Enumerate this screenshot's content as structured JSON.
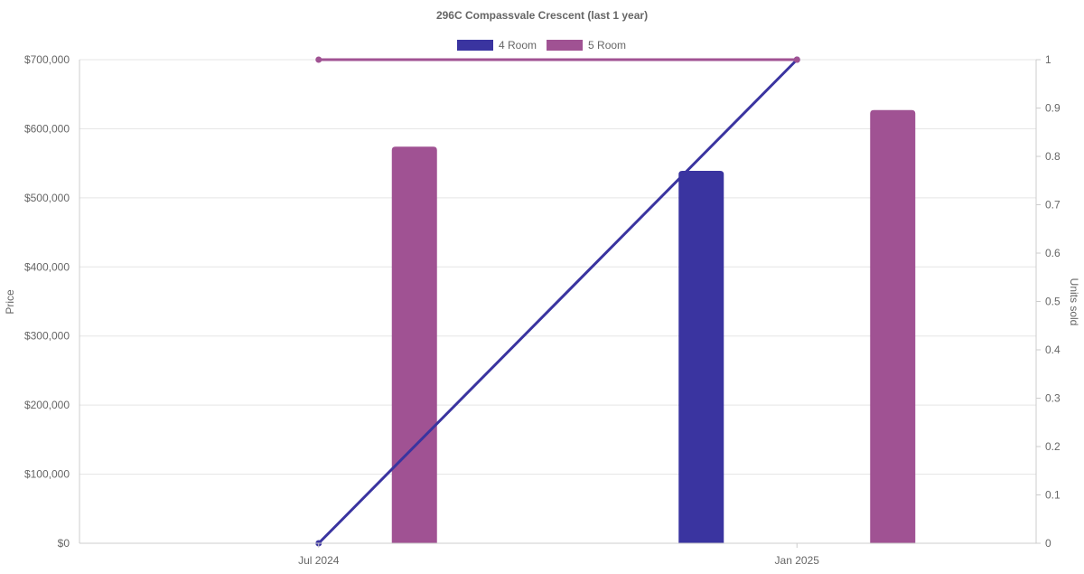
{
  "chart_data": {
    "type": "bar",
    "title": "296C Compassvale Crescent (last 1 year)",
    "categories": [
      "Jul 2024",
      "Jan 2025"
    ],
    "y_left": {
      "label": "Price",
      "range": [
        0,
        700000
      ],
      "ticks": [
        "$0",
        "$100,000",
        "$200,000",
        "$300,000",
        "$400,000",
        "$500,000",
        "$600,000",
        "$700,000"
      ],
      "tick_values": [
        0,
        100000,
        200000,
        300000,
        400000,
        500000,
        600000,
        700000
      ]
    },
    "y_right": {
      "label": "Units sold",
      "range": [
        0,
        1
      ],
      "ticks": [
        "0",
        "0.1",
        "0.2",
        "0.3",
        "0.4",
        "0.5",
        "0.6",
        "0.7",
        "0.8",
        "0.9",
        "1"
      ],
      "tick_values": [
        0,
        0.1,
        0.2,
        0.3,
        0.4,
        0.5,
        0.6,
        0.7,
        0.8,
        0.9,
        1
      ]
    },
    "grid": true,
    "legend": "top",
    "series": [
      {
        "name": "4 Room",
        "color": "#3a34a0",
        "price": [
          null,
          539000
        ],
        "units_sold": [
          0,
          1
        ]
      },
      {
        "name": "5 Room",
        "color": "#a05293",
        "price": [
          574000,
          627000
        ],
        "units_sold": [
          1,
          1
        ]
      }
    ]
  }
}
